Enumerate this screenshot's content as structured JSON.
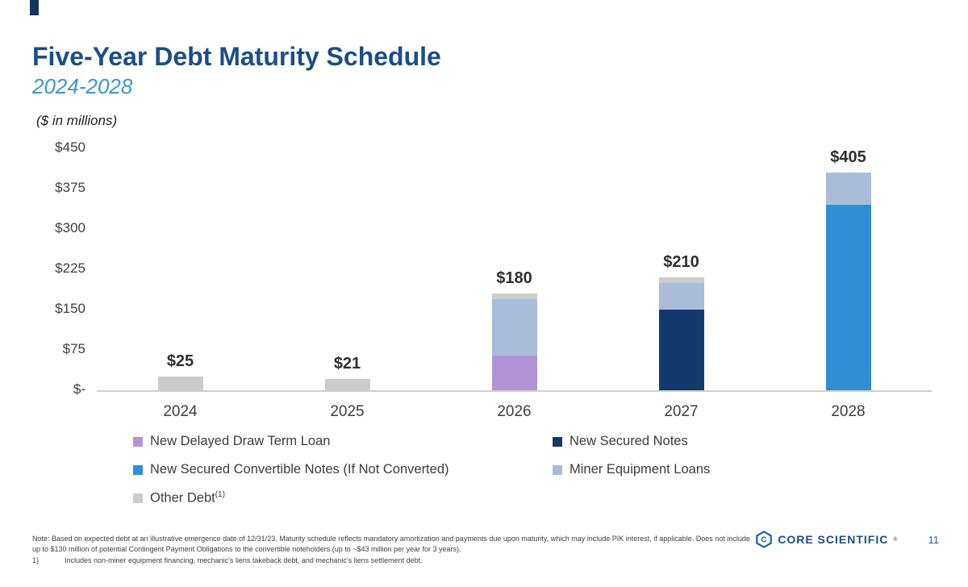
{
  "slide": {
    "title": "Five-Year Debt Maturity Schedule",
    "subtitle": "2024-2028",
    "units_label": "($ in millions)",
    "page_number": "11",
    "logo_text": "CORE SCIENTIFIC",
    "logo_reg": "®",
    "footnotes": {
      "note": "Note: Based on expected debt at an illustrative emergence date of 12/31/23. Maturity schedule reflects mandatory amortization and payments due upon maturity, which may include PIK interest, if applicable. Does not include up to $130 million of potential Contingent Payment Obligations to the convertible noteholders (up to ~$43 million per year for 3 years).",
      "item1_label": "1)",
      "item1_text": "Includes non-miner equipment financing, mechanic's liens takeback debt, and mechanic's liens settlement debt."
    }
  },
  "chart_data": {
    "type": "bar",
    "stacked": true,
    "title": "Five-Year Debt Maturity Schedule 2024-2028 ($ in millions)",
    "categories": [
      "2024",
      "2025",
      "2026",
      "2027",
      "2028"
    ],
    "totals": [
      25,
      21,
      180,
      210,
      405
    ],
    "totals_labels": [
      "$25",
      "$21",
      "$180",
      "$210",
      "$405"
    ],
    "ymax": 450,
    "grid": false,
    "legend_position": "bottom",
    "ticks": [
      {
        "label": "$450",
        "value": 450
      },
      {
        "label": "$375",
        "value": 375
      },
      {
        "label": "$300",
        "value": 300
      },
      {
        "label": "$225",
        "value": 225
      },
      {
        "label": "$150",
        "value": 150
      },
      {
        "label": "$75",
        "value": 75
      },
      {
        "label": "$-",
        "value": 0
      }
    ],
    "series": [
      {
        "id": "delayed-draw",
        "name": "New Delayed Draw Term Loan",
        "color": "#b094d6",
        "values": [
          0,
          0,
          65,
          0,
          0
        ]
      },
      {
        "id": "secured-notes",
        "name": "New Secured Notes",
        "color": "#123a6d",
        "values": [
          0,
          0,
          0,
          150,
          0
        ]
      },
      {
        "id": "convertible-notes",
        "name": "New Secured Convertible Notes (If Not Converted)",
        "color": "#2e8fd5",
        "values": [
          0,
          0,
          0,
          0,
          345
        ]
      },
      {
        "id": "miner-loans",
        "name": "Miner Equipment Loans",
        "color": "#a9bdd9",
        "values": [
          0,
          0,
          105,
          50,
          60
        ]
      },
      {
        "id": "other-debt",
        "name": "Other Debt",
        "superscript": "(1)",
        "color": "#cccccc",
        "values": [
          25,
          21,
          10,
          10,
          0
        ]
      }
    ]
  }
}
